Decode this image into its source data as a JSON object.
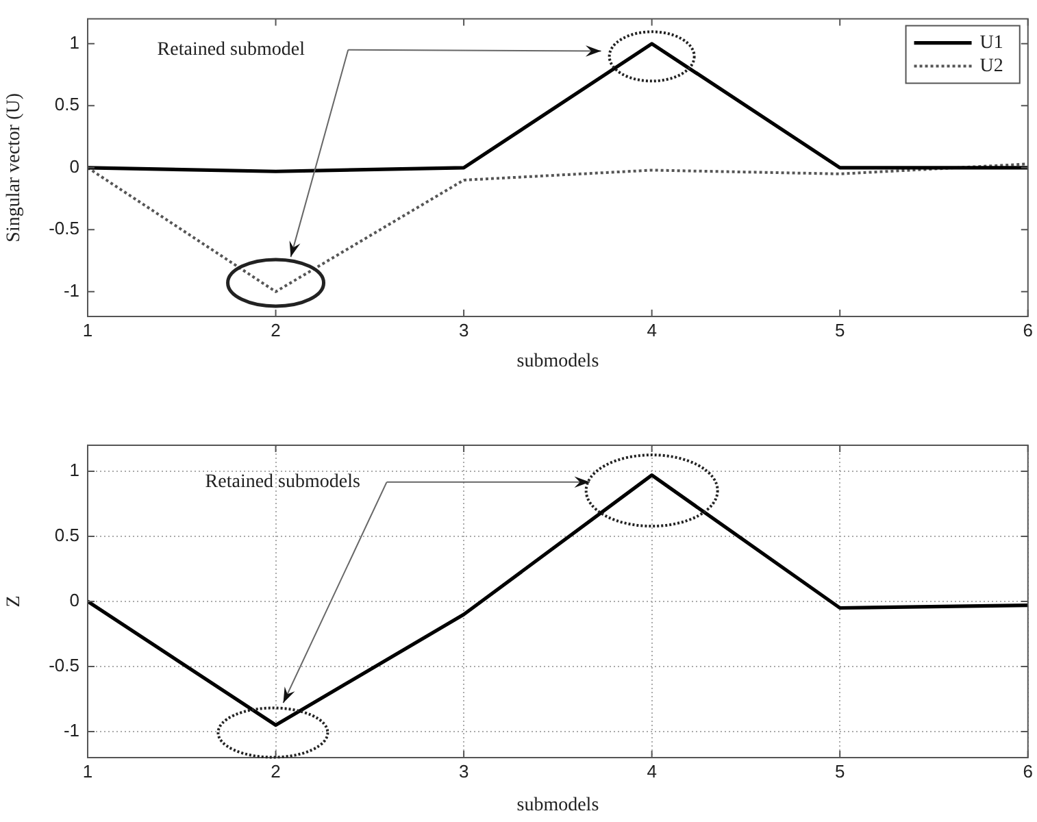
{
  "chart_data": [
    {
      "type": "line",
      "ylabel": "Singular vector (U)",
      "xlabel": "submodels",
      "x": [
        1,
        2,
        3,
        4,
        5,
        6
      ],
      "xlim": [
        1,
        6
      ],
      "xticks": [
        1,
        2,
        3,
        4,
        5,
        6
      ],
      "ylim": [
        -1.2,
        1.2
      ],
      "yticks": [
        -1,
        -0.5,
        0,
        0.5,
        1
      ],
      "grid": false,
      "legend": "top right",
      "marker": "none",
      "series": [
        {
          "name": "U1",
          "color": "#000000",
          "values": [
            0,
            -0.03,
            0,
            1,
            0,
            0
          ],
          "line_style": "solid"
        },
        {
          "name": "U2",
          "color": "#555555",
          "values": [
            0,
            -1,
            -0.1,
            -0.02,
            -0.05,
            0.03
          ],
          "line_style": "dotted"
        }
      ],
      "annotations": [
        "Retained submodel"
      ]
    },
    {
      "type": "line",
      "ylabel": "Z",
      "xlabel": "submodels",
      "x": [
        1,
        2,
        3,
        4,
        5,
        6
      ],
      "xlim": [
        1,
        6
      ],
      "xticks": [
        1,
        2,
        3,
        4,
        5,
        6
      ],
      "ylim": [
        -1.2,
        1.2
      ],
      "yticks": [
        -1,
        -0.5,
        0,
        0.5,
        1
      ],
      "grid": true,
      "legend": false,
      "marker": "none",
      "series": [
        {
          "color": "#000000",
          "values": [
            0,
            -0.95,
            -0.1,
            0.97,
            -0.05,
            -0.03
          ],
          "line_style": "solid"
        }
      ],
      "annotations": [
        "Retained submodels"
      ]
    }
  ]
}
